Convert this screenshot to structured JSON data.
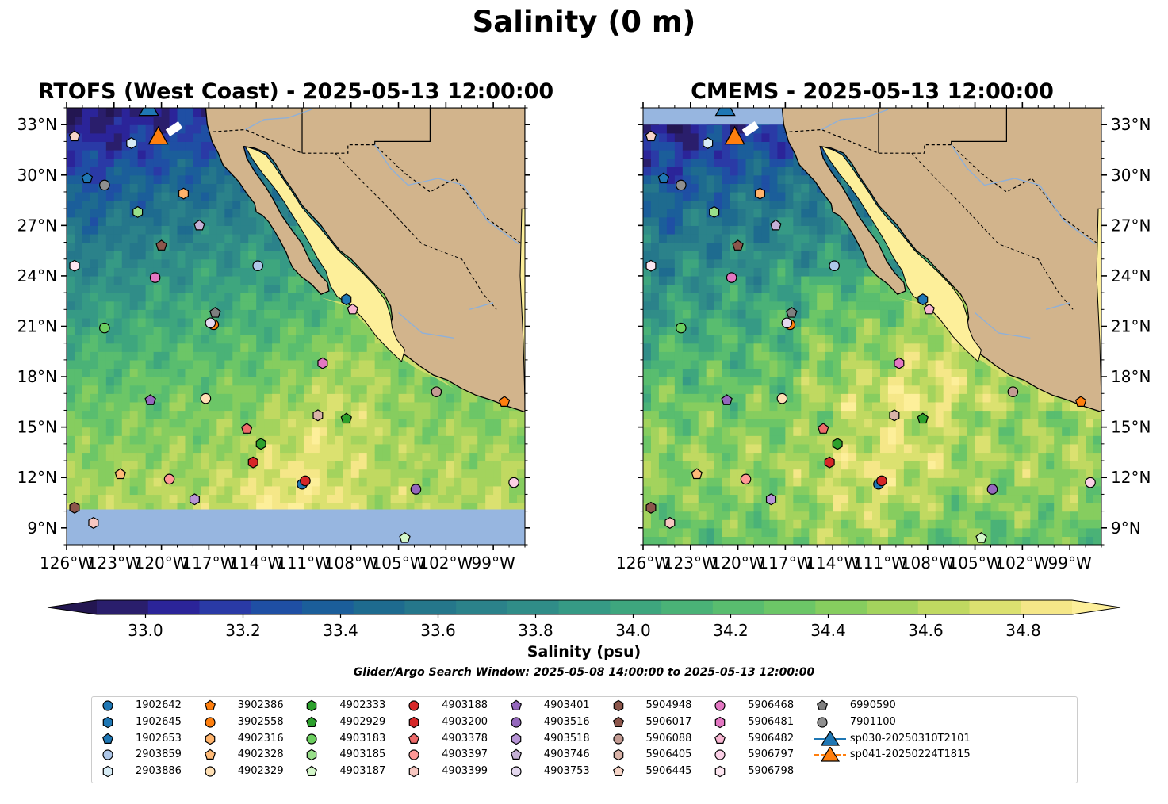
{
  "figure": {
    "suptitle": "Salinity (0 m)",
    "colorbar_label": "Salinity (psu)",
    "search_window": "Glider/Argo Search Window: 2025-05-08 14:00:00 to 2025-05-13 12:00:00"
  },
  "maps": [
    {
      "title": "RTOFS (West Coast) - 2025-05-13 12:00:00",
      "model": "rtofs",
      "nodata_south_of_lat": 10.1
    },
    {
      "title": "CMEMS - 2025-05-13 12:00:00",
      "model": "cmems",
      "nodata_north_of_lat": 33.0
    }
  ],
  "axes": {
    "lon_range": [
      -126,
      -97
    ],
    "lat_range": [
      8,
      34
    ],
    "lon_ticks": [
      -126,
      -123,
      -120,
      -117,
      -114,
      -111,
      -108,
      -105,
      -102,
      -99
    ],
    "lon_tick_labels": [
      "126°W",
      "123°W",
      "120°W",
      "117°W",
      "114°W",
      "111°W",
      "108°W",
      "105°W",
      "102°W",
      "99°W"
    ],
    "lat_ticks": [
      9,
      12,
      15,
      18,
      21,
      24,
      27,
      30,
      33
    ],
    "lat_tick_labels": [
      "9°N",
      "12°N",
      "15°N",
      "18°N",
      "21°N",
      "24°N",
      "27°N",
      "30°N",
      "33°N"
    ]
  },
  "colorbar": {
    "min": 32.9,
    "max": 34.9,
    "step": 0.1,
    "tick_values": [
      33.0,
      33.2,
      33.4,
      33.6,
      33.8,
      34.0,
      34.2,
      34.4,
      34.6,
      34.8
    ],
    "tick_labels": [
      "33.0",
      "33.2",
      "33.4",
      "33.6",
      "33.8",
      "34.0",
      "34.2",
      "34.4",
      "34.6",
      "34.8"
    ],
    "colors": [
      "#2a1e6c",
      "#2b2499",
      "#2a3aa6",
      "#1f4fa4",
      "#1b5e9a",
      "#1e6b8f",
      "#25778b",
      "#2b828a",
      "#308d88",
      "#369a85",
      "#3ea67e",
      "#4ab277",
      "#59bd6f",
      "#6cc667",
      "#86cd5f",
      "#a3d35d",
      "#c0d961",
      "#dbe170",
      "#f5e788"
    ],
    "under_color": "#231651",
    "over_color": "#fdef9a"
  },
  "map_colors": {
    "land": "#d2b48c",
    "nodata": "#97b6e0",
    "river": "#8fb0d8",
    "coast": "#000000"
  },
  "floats": [
    {
      "id": "1902642",
      "lon": -111.1,
      "lat": 11.6,
      "color": "#1f77b4",
      "marker": "circle"
    },
    {
      "id": "1902645",
      "lon": -108.3,
      "lat": 22.6,
      "color": "#1f77b4",
      "marker": "hexagon"
    },
    {
      "id": "1902653",
      "lon": -124.7,
      "lat": 29.8,
      "color": "#1f77b4",
      "marker": "pentagon"
    },
    {
      "id": "2903859",
      "lon": -113.9,
      "lat": 24.6,
      "color": "#aec7e8",
      "marker": "circle"
    },
    {
      "id": "2903886",
      "lon": -121.9,
      "lat": 31.9,
      "color": "#d7ecf6",
      "marker": "hexagon"
    },
    {
      "id": "3902386",
      "lon": -98.3,
      "lat": 16.5,
      "color": "#ff7f0e",
      "marker": "pentagon"
    },
    {
      "id": "3902558",
      "lon": -116.7,
      "lat": 21.1,
      "color": "#ff7f0e",
      "marker": "circle"
    },
    {
      "id": "4902316",
      "lon": -118.6,
      "lat": 28.9,
      "color": "#ffb36b",
      "marker": "hexagon"
    },
    {
      "id": "4902328",
      "lon": -122.6,
      "lat": 12.2,
      "color": "#ffbb78",
      "marker": "pentagon"
    },
    {
      "id": "4902329",
      "lon": -117.2,
      "lat": 16.7,
      "color": "#ffe0b5",
      "marker": "circle"
    },
    {
      "id": "4902333",
      "lon": -113.7,
      "lat": 14.0,
      "color": "#2ca02c",
      "marker": "hexagon"
    },
    {
      "id": "4902929",
      "lon": -108.3,
      "lat": 15.5,
      "color": "#2ca02c",
      "marker": "pentagon"
    },
    {
      "id": "4903183",
      "lon": -123.6,
      "lat": 20.9,
      "color": "#6ccf5f",
      "marker": "circle"
    },
    {
      "id": "4903185",
      "lon": -121.5,
      "lat": 27.8,
      "color": "#98df8a",
      "marker": "hexagon"
    },
    {
      "id": "4903187",
      "lon": -104.6,
      "lat": 8.4,
      "color": "#d4f7c9",
      "marker": "pentagon"
    },
    {
      "id": "4903188",
      "lon": -110.9,
      "lat": 11.8,
      "color": "#d62728",
      "marker": "circle"
    },
    {
      "id": "4903200",
      "lon": -114.2,
      "lat": 12.9,
      "color": "#d62728",
      "marker": "hexagon"
    },
    {
      "id": "4903378",
      "lon": -114.6,
      "lat": 14.9,
      "color": "#ee6a6a",
      "marker": "pentagon"
    },
    {
      "id": "4903397",
      "lon": -119.5,
      "lat": 11.9,
      "color": "#ff9896",
      "marker": "circle"
    },
    {
      "id": "4903399",
      "lon": -124.3,
      "lat": 9.3,
      "color": "#f7c7c1",
      "marker": "hexagon"
    },
    {
      "id": "4903401",
      "lon": -120.7,
      "lat": 16.6,
      "color": "#9467bd",
      "marker": "pentagon"
    },
    {
      "id": "4903516",
      "lon": -103.9,
      "lat": 11.3,
      "color": "#9467bd",
      "marker": "circle"
    },
    {
      "id": "4903518",
      "lon": -117.9,
      "lat": 10.7,
      "color": "#b794d6",
      "marker": "hexagon"
    },
    {
      "id": "4903746",
      "lon": -117.6,
      "lat": 27.0,
      "color": "#c5b0d5",
      "marker": "pentagon"
    },
    {
      "id": "4903753",
      "lon": -116.9,
      "lat": 21.2,
      "color": "#e4d8ef",
      "marker": "circle"
    },
    {
      "id": "5904948",
      "lon": -125.5,
      "lat": 10.2,
      "color": "#8c564b",
      "marker": "hexagon"
    },
    {
      "id": "5906017",
      "lon": -120.0,
      "lat": 25.8,
      "color": "#8c564b",
      "marker": "pentagon"
    },
    {
      "id": "5906088",
      "lon": -102.6,
      "lat": 17.1,
      "color": "#c49c94",
      "marker": "circle"
    },
    {
      "id": "5906405",
      "lon": -110.1,
      "lat": 15.7,
      "color": "#d9b3a8",
      "marker": "hexagon"
    },
    {
      "id": "5906445",
      "lon": -125.5,
      "lat": 32.3,
      "color": "#f6d5c8",
      "marker": "pentagon"
    },
    {
      "id": "5906468",
      "lon": -120.4,
      "lat": 23.9,
      "color": "#e377c2",
      "marker": "circle"
    },
    {
      "id": "5906481",
      "lon": -109.8,
      "lat": 18.8,
      "color": "#e377c2",
      "marker": "hexagon"
    },
    {
      "id": "5906482",
      "lon": -107.9,
      "lat": 22.0,
      "color": "#f7b6d2",
      "marker": "pentagon"
    },
    {
      "id": "5906797",
      "lon": -97.7,
      "lat": 11.7,
      "color": "#fbd0e6",
      "marker": "circle"
    },
    {
      "id": "5906798",
      "lon": -125.5,
      "lat": 24.6,
      "color": "#fde6f1",
      "marker": "hexagon"
    },
    {
      "id": "6990590",
      "lon": -116.6,
      "lat": 21.8,
      "color": "#7f7f7f",
      "marker": "pentagon"
    },
    {
      "id": "7901100",
      "lon": -123.6,
      "lat": 29.4,
      "color": "#8f8f8f",
      "marker": "circle"
    }
  ],
  "gliders": [
    {
      "id": "sp030-20250310T2101",
      "color": "#1f77b4",
      "lon": -120.8,
      "lat": 34.0
    },
    {
      "id": "sp041-20250224T1815",
      "color": "#ff7f0e",
      "lon": -120.2,
      "lat": 32.3
    }
  ],
  "glider_track_segment": {
    "from": [
      -119.6,
      32.5
    ],
    "to": [
      -118.8,
      33.0
    ]
  }
}
